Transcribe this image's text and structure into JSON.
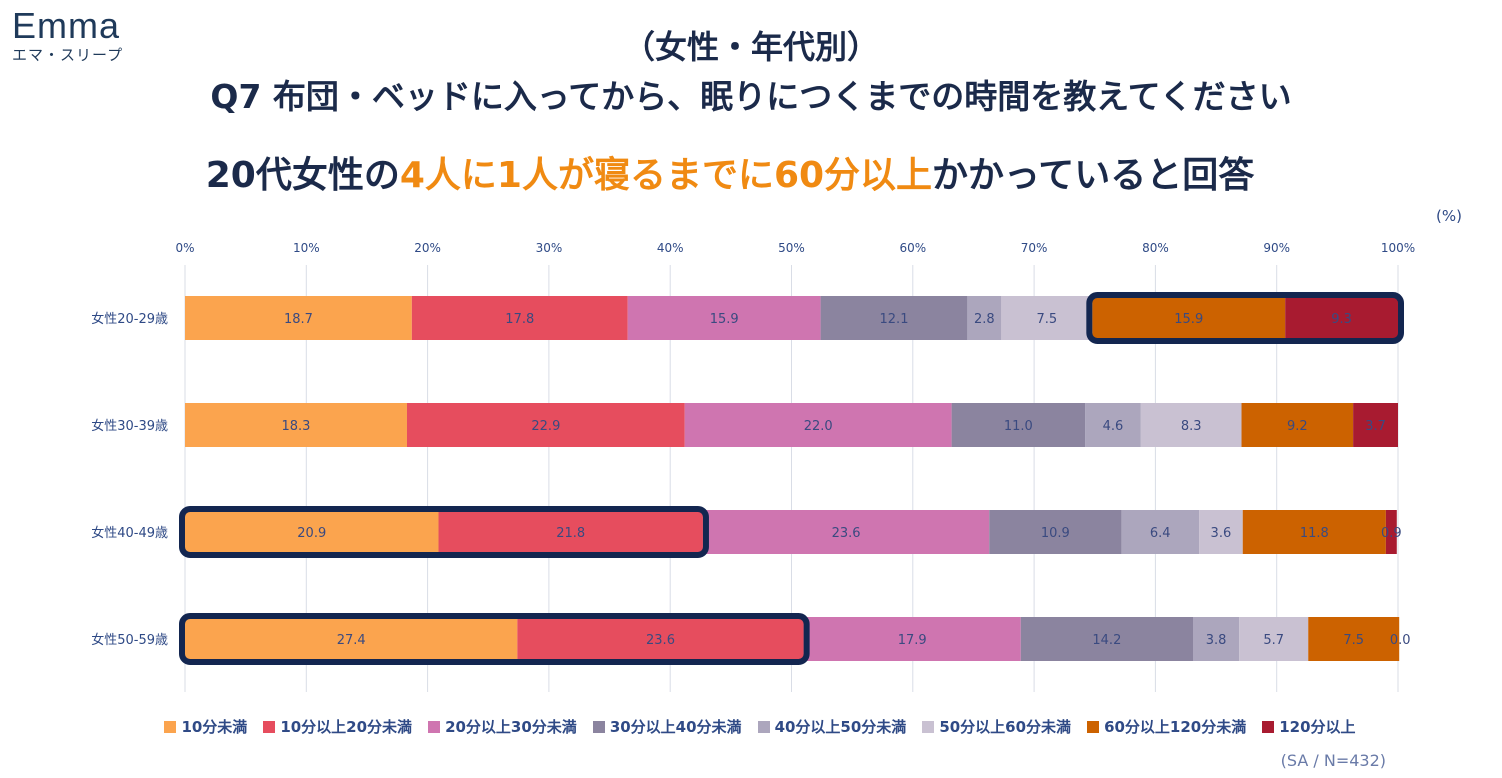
{
  "logo": {
    "word": "Emma",
    "sub": "エマ・スリープ"
  },
  "title_line1": "（女性・年代別）",
  "title_line2": "Q7 布団・ベッドに入ってから、眠りにつくまでの時間を教えてください",
  "headline": {
    "part1": "20代女性の",
    "highlight": "4人に1人が寝るまでに60分以上",
    "part2": "かかっていると回答"
  },
  "unit_label": "(%)",
  "sample_note": "(SA / N=432)",
  "colors": {
    "highlight_text": "#f08a12",
    "outline": "#132650",
    "axis_text": "#2f4a86",
    "value_text": "#3a4a80"
  },
  "chart_data": {
    "type": "bar",
    "orientation": "horizontal",
    "stacked": true,
    "categories": [
      "女性20-29歳",
      "女性30-39歳",
      "女性40-49歳",
      "女性50-59歳"
    ],
    "xlim": [
      0,
      100
    ],
    "x_ticks": [
      "0%",
      "10%",
      "20%",
      "30%",
      "40%",
      "50%",
      "60%",
      "70%",
      "80%",
      "90%",
      "100%"
    ],
    "grid": true,
    "legend_position": "bottom",
    "series": [
      {
        "name": "10分未満",
        "color": "#fba44e",
        "values": [
          18.7,
          18.3,
          20.9,
          27.4
        ]
      },
      {
        "name": "10分以上20分未満",
        "color": "#e64d5e",
        "values": [
          17.8,
          22.9,
          21.8,
          23.6
        ]
      },
      {
        "name": "20分以上30分未満",
        "color": "#cf75b0",
        "values": [
          15.9,
          22.0,
          23.6,
          17.9
        ]
      },
      {
        "name": "30分以上40分未満",
        "color": "#8b849f",
        "values": [
          12.1,
          11.0,
          10.9,
          14.2
        ]
      },
      {
        "name": "40分以上50分未満",
        "color": "#aca6bd",
        "values": [
          2.8,
          4.6,
          6.4,
          3.8
        ]
      },
      {
        "name": "50分以上60分未満",
        "color": "#c9c1d2",
        "values": [
          7.5,
          8.3,
          3.6,
          5.7
        ]
      },
      {
        "name": "60分以上120分未満",
        "color": "#cc6200",
        "values": [
          15.9,
          9.2,
          11.8,
          7.5
        ]
      },
      {
        "name": "120分以上",
        "color": "#a81b30",
        "values": [
          9.3,
          3.7,
          0.9,
          0.0
        ]
      }
    ],
    "value_labels": [
      [
        "18.7",
        "17.8",
        "15.9",
        "12.1",
        "2.8",
        "7.5",
        "15.9",
        "9.3"
      ],
      [
        "18.3",
        "22.9",
        "22.0",
        "11.0",
        "4.6",
        "8.3",
        "9.2",
        "3.7"
      ],
      [
        "20.9",
        "21.8",
        "23.6",
        "10.9",
        "6.4",
        "3.6",
        "11.8",
        "0.9"
      ],
      [
        "27.4",
        "23.6",
        "17.9",
        "14.2",
        "3.8",
        "5.7",
        "7.5",
        "0.0"
      ]
    ],
    "highlights": [
      {
        "row": 0,
        "from_series": 6,
        "to_series": 7
      },
      {
        "row": 2,
        "from_series": 0,
        "to_series": 1
      },
      {
        "row": 3,
        "from_series": 0,
        "to_series": 1
      }
    ]
  }
}
